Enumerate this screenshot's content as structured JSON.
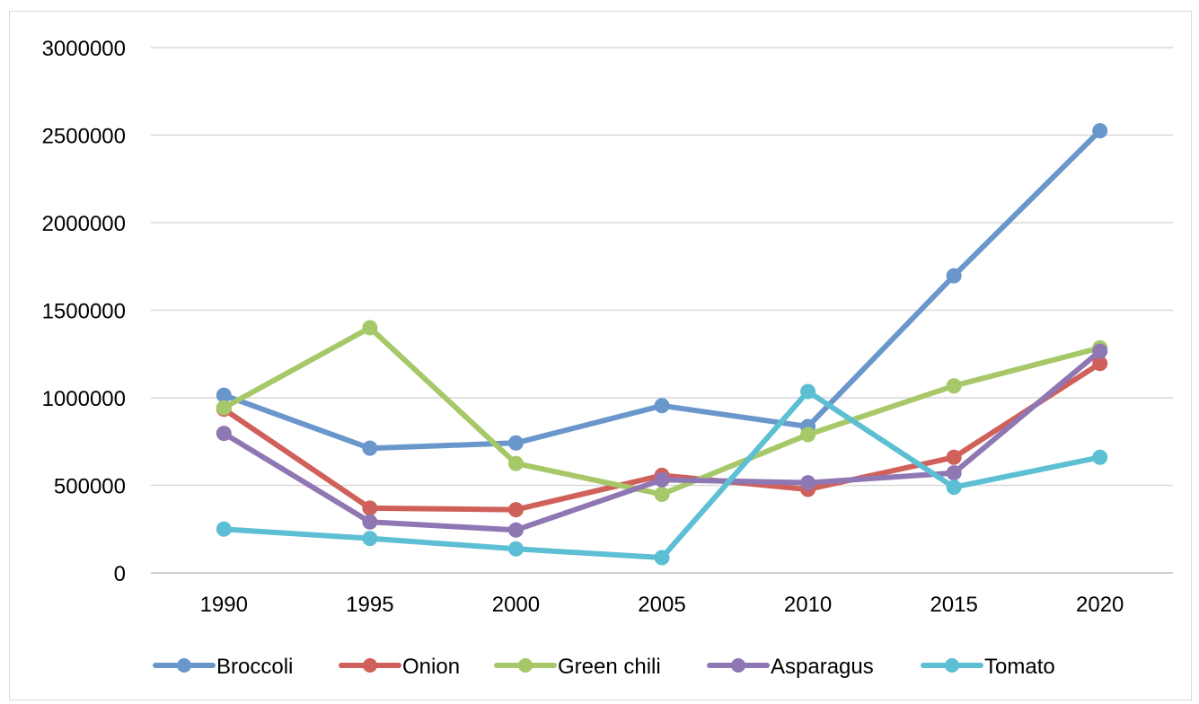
{
  "chart_data": {
    "type": "line",
    "title": "",
    "xlabel": "",
    "ylabel": "",
    "categories": [
      "1990",
      "1995",
      "2000",
      "2005",
      "2010",
      "2015",
      "2020"
    ],
    "ylim": [
      0,
      3000000
    ],
    "yticks": [
      "0",
      "500000",
      "1000000",
      "1500000",
      "2000000",
      "2500000",
      "3000000"
    ],
    "grid": true,
    "legend_position": "bottom",
    "series": [
      {
        "name": "Broccoli",
        "color": "#6a97cb",
        "values": [
          1015000,
          712000,
          742000,
          955000,
          836000,
          1697000,
          2525000
        ]
      },
      {
        "name": "Onion",
        "color": "#d0605a",
        "values": [
          935000,
          370000,
          361000,
          557000,
          477000,
          660000,
          1196000
        ]
      },
      {
        "name": "Green chili",
        "color": "#a6c868",
        "values": [
          943000,
          1400000,
          625000,
          449000,
          790000,
          1068000,
          1285000
        ]
      },
      {
        "name": "Asparagus",
        "color": "#8f77b3",
        "values": [
          797000,
          291000,
          245000,
          532000,
          515000,
          571000,
          1266000
        ]
      },
      {
        "name": "Tomato",
        "color": "#5dbfd4",
        "values": [
          250000,
          197000,
          137000,
          87000,
          1036000,
          489000,
          660000
        ]
      }
    ]
  }
}
